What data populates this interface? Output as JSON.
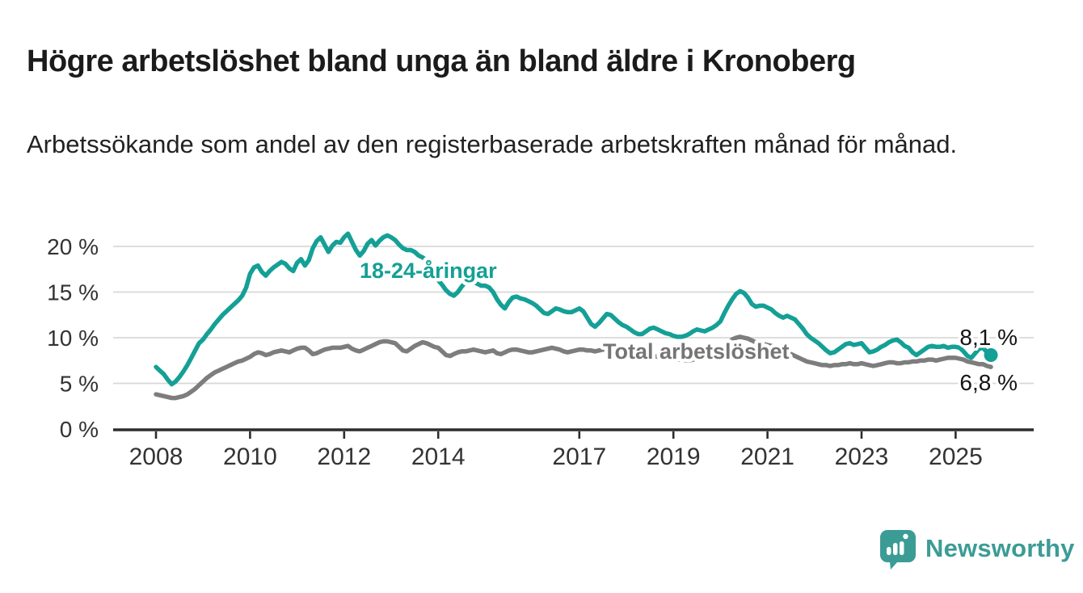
{
  "title": "Högre arbetslöshet bland unga än bland äldre i Kronoberg",
  "subtitle": "Arbetssökande som andel av den registerbaserade arbetskraften månad för månad.",
  "footer": {
    "brand": "Newsworthy",
    "logo_icon": "newsworthy-speech-bubble-chart-icon"
  },
  "colors": {
    "young_series": "#14a096",
    "total_series": "#7d7d7d",
    "total_label": "#757575",
    "grid": "#d8d8d8",
    "axis": "#2d2d2d",
    "axis_text": "#333333",
    "end_label_text": "#141414",
    "title_text": "#1b1b1b",
    "brand_teal": "#3b9c95",
    "background": "#ffffff"
  },
  "chart_data": {
    "type": "line",
    "title": "",
    "unit": "%",
    "frequency": "monthly",
    "x_start": "2008-01",
    "x_end": "2025-10",
    "grid": "horizontal-only",
    "legend_position": "inline-labels",
    "ylim": [
      0,
      22
    ],
    "y_axis": {
      "ticks": [
        {
          "value": 0,
          "label": "0 %"
        },
        {
          "value": 5,
          "label": "5 %"
        },
        {
          "value": 10,
          "label": "10 %"
        },
        {
          "value": 15,
          "label": "15 %"
        },
        {
          "value": 20,
          "label": "20 %"
        }
      ]
    },
    "x_axis": {
      "ticks": [
        {
          "year": 2008,
          "label": "2008"
        },
        {
          "year": 2010,
          "label": "2010"
        },
        {
          "year": 2012,
          "label": "2012"
        },
        {
          "year": 2014,
          "label": "2014"
        },
        {
          "year": 2017,
          "label": "2017"
        },
        {
          "year": 2019,
          "label": "2019"
        },
        {
          "year": 2021,
          "label": "2021"
        },
        {
          "year": 2023,
          "label": "2023"
        },
        {
          "year": 2025,
          "label": "2025"
        }
      ]
    },
    "series": [
      {
        "name": "18-24-åringar",
        "color": "#14a096",
        "end_value": 8.1,
        "end_label": "8,1 %",
        "values": [
          6.8,
          6.4,
          6.0,
          5.4,
          4.9,
          5.2,
          5.7,
          6.3,
          7.0,
          7.8,
          8.6,
          9.4,
          9.8,
          10.4,
          10.9,
          11.5,
          12.0,
          12.5,
          12.9,
          13.3,
          13.7,
          14.1,
          14.6,
          15.5,
          17.0,
          17.7,
          17.9,
          17.2,
          16.8,
          17.3,
          17.7,
          18.0,
          18.3,
          18.1,
          17.6,
          17.3,
          18.2,
          18.6,
          17.9,
          18.5,
          19.8,
          20.6,
          21.0,
          20.2,
          19.4,
          20.1,
          20.5,
          20.4,
          21.0,
          21.4,
          20.5,
          19.6,
          19.0,
          19.5,
          20.3,
          20.7,
          20.1,
          20.6,
          21.0,
          21.2,
          21.0,
          20.7,
          20.2,
          19.8,
          19.6,
          19.6,
          19.4,
          19.0,
          18.8,
          18.5,
          18.0,
          17.2,
          16.3,
          15.8,
          15.2,
          14.8,
          14.6,
          15.0,
          15.6,
          16.1,
          16.3,
          16.1,
          15.9,
          15.7,
          15.7,
          15.5,
          15.0,
          14.2,
          13.6,
          13.2,
          13.9,
          14.4,
          14.5,
          14.3,
          14.2,
          14.0,
          13.8,
          13.5,
          13.1,
          12.7,
          12.6,
          12.9,
          13.2,
          13.1,
          12.9,
          12.8,
          12.8,
          13.0,
          13.2,
          12.9,
          12.2,
          11.5,
          11.2,
          11.6,
          12.1,
          12.6,
          12.5,
          12.1,
          11.7,
          11.4,
          11.2,
          10.9,
          10.6,
          10.4,
          10.4,
          10.7,
          11.0,
          11.1,
          10.9,
          10.7,
          10.5,
          10.4,
          10.2,
          10.1,
          10.1,
          10.2,
          10.4,
          10.7,
          10.9,
          10.8,
          10.7,
          10.9,
          11.1,
          11.4,
          11.8,
          12.7,
          13.5,
          14.2,
          14.8,
          15.1,
          14.9,
          14.4,
          13.7,
          13.4,
          13.5,
          13.5,
          13.3,
          13.1,
          12.7,
          12.4,
          12.2,
          12.4,
          12.2,
          12.0,
          11.5,
          11.0,
          10.4,
          10.0,
          9.7,
          9.4,
          9.0,
          8.6,
          8.3,
          8.4,
          8.7,
          9.0,
          9.3,
          9.4,
          9.2,
          9.3,
          9.4,
          8.9,
          8.4,
          8.5,
          8.7,
          9.0,
          9.2,
          9.5,
          9.7,
          9.8,
          9.5,
          9.1,
          8.9,
          8.4,
          8.1,
          8.4,
          8.7,
          9.0,
          9.1,
          9.0,
          9.0,
          9.1,
          8.9,
          9.0,
          9.0,
          8.9,
          8.5,
          8.0,
          7.8,
          8.3,
          8.8,
          8.9,
          8.4,
          8.1
        ]
      },
      {
        "name": "Total arbetslöshet",
        "color": "#7d7d7d",
        "end_value": 6.8,
        "end_label": "6,8 %",
        "values": [
          3.8,
          3.7,
          3.6,
          3.5,
          3.4,
          3.4,
          3.5,
          3.6,
          3.8,
          4.1,
          4.4,
          4.8,
          5.2,
          5.6,
          5.9,
          6.2,
          6.4,
          6.6,
          6.8,
          7.0,
          7.2,
          7.4,
          7.5,
          7.7,
          7.9,
          8.2,
          8.4,
          8.3,
          8.1,
          8.2,
          8.4,
          8.5,
          8.6,
          8.5,
          8.4,
          8.6,
          8.8,
          8.9,
          8.9,
          8.6,
          8.2,
          8.3,
          8.5,
          8.7,
          8.8,
          8.9,
          8.9,
          8.9,
          9.0,
          9.1,
          8.8,
          8.6,
          8.5,
          8.7,
          8.9,
          9.1,
          9.3,
          9.5,
          9.6,
          9.6,
          9.5,
          9.4,
          9.0,
          8.6,
          8.5,
          8.8,
          9.1,
          9.3,
          9.5,
          9.4,
          9.2,
          9.0,
          8.9,
          8.5,
          8.1,
          8.0,
          8.2,
          8.4,
          8.5,
          8.5,
          8.6,
          8.7,
          8.6,
          8.5,
          8.4,
          8.5,
          8.6,
          8.3,
          8.2,
          8.4,
          8.6,
          8.7,
          8.7,
          8.6,
          8.5,
          8.4,
          8.4,
          8.5,
          8.6,
          8.7,
          8.8,
          8.9,
          8.8,
          8.7,
          8.5,
          8.4,
          8.5,
          8.6,
          8.7,
          8.7,
          8.6,
          8.6,
          8.5,
          8.6,
          8.7,
          8.7,
          8.6,
          8.5,
          8.4,
          8.4,
          8.3,
          8.2,
          8.1,
          8.0,
          7.9,
          7.9,
          8.0,
          8.0,
          7.9,
          7.8,
          7.8,
          7.7,
          7.7,
          7.6,
          7.6,
          7.5,
          7.5,
          7.6,
          7.7,
          7.8,
          7.8,
          7.9,
          8.0,
          8.1,
          8.5,
          8.8,
          9.3,
          9.8,
          10.0,
          10.1,
          10.0,
          9.9,
          9.7,
          9.5,
          9.4,
          9.3,
          9.2,
          9.1,
          8.9,
          8.7,
          8.5,
          8.4,
          8.2,
          8.0,
          7.8,
          7.6,
          7.4,
          7.3,
          7.2,
          7.1,
          7.0,
          7.0,
          6.9,
          7.0,
          7.0,
          7.1,
          7.1,
          7.2,
          7.1,
          7.1,
          7.2,
          7.1,
          7.0,
          6.9,
          7.0,
          7.1,
          7.2,
          7.3,
          7.3,
          7.2,
          7.2,
          7.3,
          7.3,
          7.4,
          7.4,
          7.5,
          7.5,
          7.6,
          7.6,
          7.5,
          7.6,
          7.7,
          7.8,
          7.8,
          7.8,
          7.7,
          7.6,
          7.4,
          7.3,
          7.2,
          7.1,
          7.1,
          6.9,
          6.8
        ]
      }
    ]
  }
}
